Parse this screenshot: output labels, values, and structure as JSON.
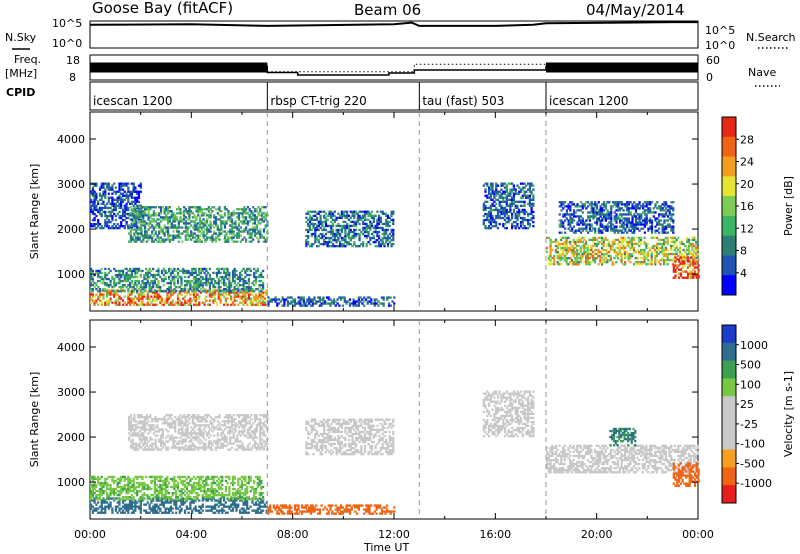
{
  "header": {
    "station": "Goose Bay (fitACF)",
    "beam": "Beam 06",
    "date": "04/May/2014"
  },
  "top_panels": {
    "nsky_label": "N.Sky",
    "nsearch_label": "N.Search",
    "noise_ticks": [
      "10^5",
      "10^0"
    ],
    "freq_label": "Freq.",
    "freq_unit": "[MHz]",
    "freq_ticks": [
      "18",
      "8"
    ],
    "nave_label": "Nave",
    "nave_ticks": [
      "60",
      "0"
    ],
    "cpid_label": "CPID"
  },
  "colors": {
    "power": [
      "#0000ff",
      "#1e55b4",
      "#2d7f73",
      "#3cb464",
      "#7fcc55",
      "#e6e632",
      "#f0a01e",
      "#ee6414",
      "#e62814"
    ],
    "velocity": [
      "#1e3cc8",
      "#2d6e8c",
      "#3ca050",
      "#78c846",
      "#c8c8c8",
      "#c8c8c8",
      "#c8c8c8",
      "#f5a01e",
      "#f06414",
      "#e61e1e"
    ]
  },
  "chart_data": [
    {
      "type": "line",
      "panel": "noise",
      "ylabel": "N.Sky",
      "y_scale": "log",
      "ylim": [
        1,
        100000
      ],
      "y_ticks": [
        "10^0",
        "10^5"
      ],
      "series": [
        {
          "name": "N.Sky",
          "x_hours": [
            0,
            4,
            7,
            9,
            12,
            12.7,
            13,
            16,
            17.5,
            18,
            21,
            23,
            24
          ],
          "y_log10": [
            4.3,
            4.4,
            4.1,
            4.2,
            4.4,
            4.7,
            4.1,
            4.1,
            4.3,
            4.6,
            4.7,
            4.8,
            4.8
          ]
        },
        {
          "name": "N.Search",
          "x_hours": [],
          "y_log10": []
        }
      ]
    },
    {
      "type": "line",
      "panel": "frequency",
      "ylabel": "Freq. [MHz]",
      "ylim": [
        8,
        18
      ],
      "y2label": "Nave",
      "y2lim": [
        0,
        60
      ],
      "series": [
        {
          "name": "Freq.",
          "x_hours": [
            0,
            7,
            7,
            8.2,
            8.2,
            11.8,
            11.8,
            12.8,
            12.8,
            18,
            18,
            24
          ],
          "values": [
            13.5,
            13.5,
            11,
            11,
            10,
            10,
            10.8,
            10.8,
            12,
            12,
            13.5,
            13.5
          ]
        },
        {
          "name": "Nave",
          "x_hours": [
            7,
            12.8,
            12.8,
            18
          ],
          "values": [
            20,
            20,
            38,
            38
          ]
        }
      ]
    },
    {
      "type": "table",
      "panel": "cpid",
      "title": "CPID",
      "segments": [
        {
          "label": "icescan 1200",
          "start": 0,
          "end": 7
        },
        {
          "label": "rbsp CT-trig 220",
          "start": 7,
          "end": 13
        },
        {
          "label": "tau (fast) 503",
          "start": 13,
          "end": 18
        },
        {
          "label": "icescan 1200",
          "start": 18,
          "end": 24
        }
      ]
    },
    {
      "type": "heatmap",
      "panel": "power",
      "ylabel": "Slant Range [km]",
      "xlabel": "Time UT",
      "xlim": [
        0,
        24
      ],
      "ylim": [
        180,
        4600
      ],
      "y_ticks": [
        1000,
        2000,
        3000,
        4000
      ],
      "x_ticks": [
        "00:00",
        "04:00",
        "08:00",
        "12:00",
        "16:00",
        "20:00",
        "00:00"
      ],
      "colorbar": {
        "label": "Power [dB]",
        "ticks": [
          4,
          8,
          12,
          16,
          20,
          24,
          28
        ],
        "range": [
          0,
          30
        ]
      },
      "regions": [
        {
          "t0": 0.0,
          "t1": 7.0,
          "r0": 300,
          "r1": 650,
          "value": 22
        },
        {
          "t0": 0.0,
          "t1": 6.8,
          "r0": 600,
          "r1": 1100,
          "value": 9
        },
        {
          "t0": 0.0,
          "t1": 2.0,
          "r0": 2000,
          "r1": 3000,
          "value": 5
        },
        {
          "t0": 1.5,
          "t1": 7.0,
          "r0": 1700,
          "r1": 2500,
          "value": 10
        },
        {
          "t0": 7.0,
          "t1": 12.0,
          "r0": 280,
          "r1": 480,
          "value": 6
        },
        {
          "t0": 8.5,
          "t1": 12.0,
          "r0": 1600,
          "r1": 2400,
          "value": 7
        },
        {
          "t0": 15.5,
          "t1": 17.5,
          "r0": 2000,
          "r1": 3000,
          "value": 6
        },
        {
          "t0": 18.0,
          "t1": 24.0,
          "r0": 1200,
          "r1": 1800,
          "value": 17
        },
        {
          "t0": 18.5,
          "t1": 23.0,
          "r0": 1900,
          "r1": 2600,
          "value": 6
        },
        {
          "t0": 23.0,
          "t1": 24.0,
          "r0": 900,
          "r1": 1400,
          "value": 27
        }
      ]
    },
    {
      "type": "heatmap",
      "panel": "velocity",
      "ylabel": "Slant Range [km]",
      "xlabel": "Time UT",
      "xlim": [
        0,
        24
      ],
      "ylim": [
        180,
        4600
      ],
      "y_ticks": [
        1000,
        2000,
        3000,
        4000
      ],
      "x_ticks": [
        "00:00",
        "04:00",
        "08:00",
        "12:00",
        "16:00",
        "20:00",
        "00:00"
      ],
      "colorbar": {
        "label": "Velocity [m s-1]",
        "ticks": [
          "1000",
          "500",
          "100",
          "25",
          "-25",
          "-100",
          "-500",
          "-1000"
        ]
      },
      "regions": [
        {
          "t0": 0.0,
          "t1": 7.0,
          "r0": 300,
          "r1": 650,
          "value": 150
        },
        {
          "t0": 0.0,
          "t1": 6.8,
          "r0": 600,
          "r1": 1100,
          "value": 40
        },
        {
          "t0": 1.5,
          "t1": 7.0,
          "r0": 1700,
          "r1": 2500,
          "value": 0
        },
        {
          "t0": 7.0,
          "t1": 12.0,
          "r0": 280,
          "r1": 480,
          "value": -150
        },
        {
          "t0": 8.5,
          "t1": 12.0,
          "r0": 1600,
          "r1": 2400,
          "value": 0
        },
        {
          "t0": 15.5,
          "t1": 17.5,
          "r0": 2000,
          "r1": 3000,
          "value": 0
        },
        {
          "t0": 18.0,
          "t1": 24.0,
          "r0": 1200,
          "r1": 1800,
          "value": 0
        },
        {
          "t0": 20.5,
          "t1": 21.5,
          "r0": 1800,
          "r1": 2200,
          "value": 100
        },
        {
          "t0": 23.0,
          "t1": 24.0,
          "r0": 900,
          "r1": 1400,
          "value": -300
        }
      ]
    }
  ]
}
